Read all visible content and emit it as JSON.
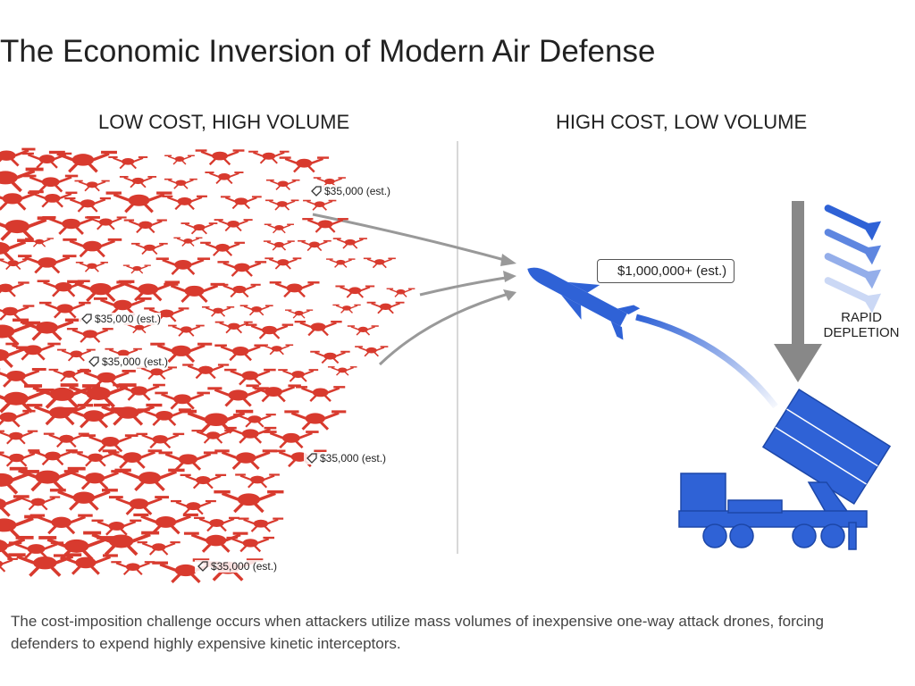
{
  "title": "The Economic Inversion of Modern Air Defense",
  "panels": [
    {
      "heading": "LOW COST, HIGH VOLUME"
    },
    {
      "heading": "HIGH COST, LOW VOLUME"
    }
  ],
  "drone_tags": [
    "$35,000 (est.)",
    "$35,000 (est.)",
    "$35,000 (est.)",
    "$35,000 (est.)",
    "$35,000 (est.)"
  ],
  "missile_tag": "$1,000,000+ (est.)",
  "depletion_label": "RAPID DEPLETION",
  "caption": "The cost-imposition challenge occurs when attackers utilize mass volumes of inexpensive one-way attack drones, forcing defenders to expend highly expensive kinetic interceptors."
}
